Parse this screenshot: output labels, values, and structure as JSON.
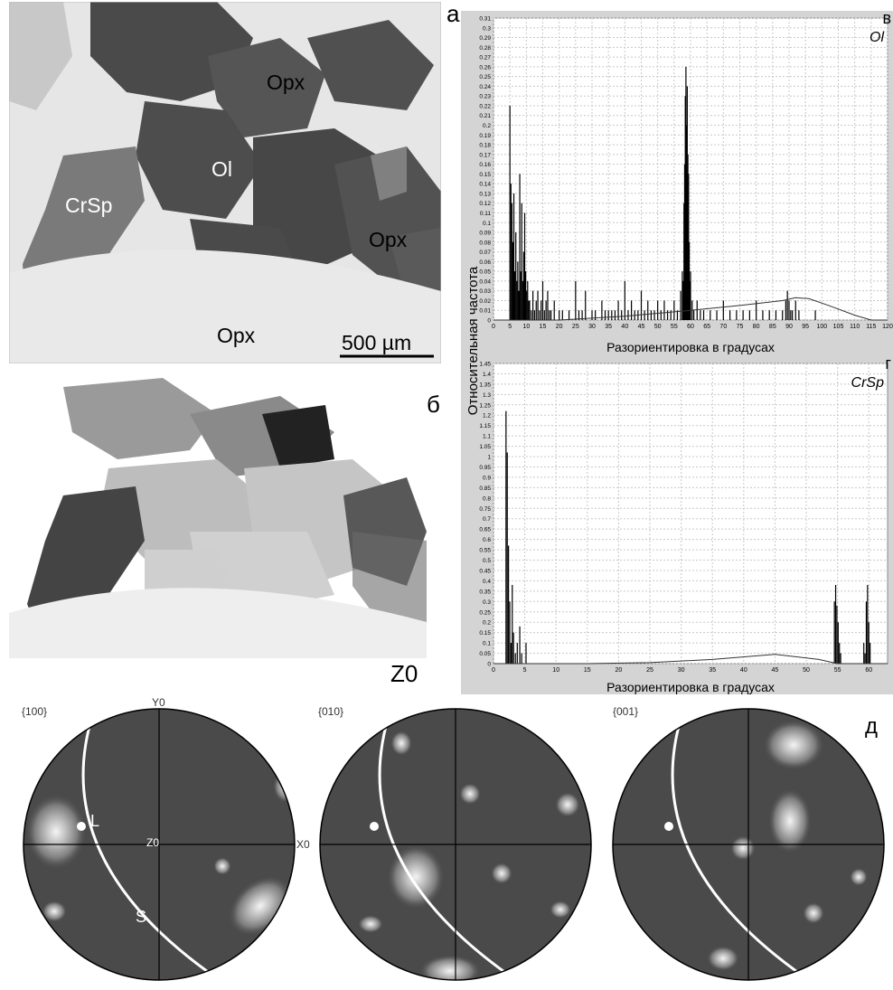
{
  "panel_a": {
    "letter": "а",
    "labels": [
      "Opx",
      "Ol",
      "CrSp",
      "Opx",
      "Opx"
    ],
    "scale_bar": "500 µm"
  },
  "panel_b": {
    "letter": "б",
    "caption": "Z0"
  },
  "shared_ylabel": "Относительная частота",
  "chart_data": [
    {
      "type": "bar",
      "panel_letter": "в",
      "mineral": "Ol",
      "xlabel": "Разориентировка в градусах",
      "ylabel": "Относительная частота",
      "xlim": [
        0,
        120
      ],
      "ylim": [
        0,
        0.31
      ],
      "x_ticks": [
        0,
        5,
        10,
        15,
        20,
        25,
        30,
        35,
        40,
        45,
        50,
        55,
        60,
        65,
        70,
        75,
        80,
        85,
        90,
        95,
        100,
        105,
        110,
        115,
        120
      ],
      "y_ticks": [
        0,
        0.01,
        0.02,
        0.03,
        0.04,
        0.05,
        0.06,
        0.07,
        0.08,
        0.09,
        0.1,
        0.11,
        0.12,
        0.13,
        0.14,
        0.15,
        0.16,
        0.17,
        0.18,
        0.19,
        0.2,
        0.21,
        0.22,
        0.23,
        0.24,
        0.25,
        0.26,
        0.27,
        0.28,
        0.29,
        0.3,
        0.31
      ],
      "grid": true,
      "bars": [
        [
          5,
          0.22
        ],
        [
          5.3,
          0.14
        ],
        [
          5.6,
          0.12
        ],
        [
          5.9,
          0.08
        ],
        [
          6.2,
          0.13
        ],
        [
          6.5,
          0.05
        ],
        [
          6.8,
          0.09
        ],
        [
          7.1,
          0.04
        ],
        [
          7.4,
          0.06
        ],
        [
          7.7,
          0.03
        ],
        [
          8,
          0.15
        ],
        [
          8.3,
          0.05
        ],
        [
          8.6,
          0.12
        ],
        [
          8.9,
          0.04
        ],
        [
          9.2,
          0.07
        ],
        [
          9.5,
          0.11
        ],
        [
          9.8,
          0.05
        ],
        [
          10.1,
          0.03
        ],
        [
          10.4,
          0.04
        ],
        [
          10.7,
          0.02
        ],
        [
          11,
          0.02
        ],
        [
          11.5,
          0.01
        ],
        [
          12,
          0.03
        ],
        [
          12.5,
          0.01
        ],
        [
          13,
          0.02
        ],
        [
          13.5,
          0.03
        ],
        [
          14,
          0.01
        ],
        [
          14.5,
          0.02
        ],
        [
          15,
          0.04
        ],
        [
          15.5,
          0.01
        ],
        [
          16,
          0.02
        ],
        [
          16.5,
          0.03
        ],
        [
          17,
          0.01
        ],
        [
          17.5,
          0.01
        ],
        [
          18.5,
          0.02
        ],
        [
          20,
          0.01
        ],
        [
          21,
          0.01
        ],
        [
          23,
          0.01
        ],
        [
          25,
          0.04
        ],
        [
          26,
          0.01
        ],
        [
          27,
          0.01
        ],
        [
          28,
          0.03
        ],
        [
          30,
          0.01
        ],
        [
          31,
          0.01
        ],
        [
          33,
          0.02
        ],
        [
          34,
          0.01
        ],
        [
          35,
          0.01
        ],
        [
          36,
          0.01
        ],
        [
          37,
          0.01
        ],
        [
          38,
          0.02
        ],
        [
          39,
          0.01
        ],
        [
          40,
          0.04
        ],
        [
          41,
          0.01
        ],
        [
          42,
          0.02
        ],
        [
          43,
          0.01
        ],
        [
          44,
          0.01
        ],
        [
          45,
          0.03
        ],
        [
          46,
          0.01
        ],
        [
          47,
          0.02
        ],
        [
          48,
          0.01
        ],
        [
          49,
          0.01
        ],
        [
          50,
          0.02
        ],
        [
          51,
          0.01
        ],
        [
          52,
          0.02
        ],
        [
          53,
          0.01
        ],
        [
          54,
          0.01
        ],
        [
          55,
          0.02
        ],
        [
          56,
          0.01
        ],
        [
          57,
          0.03
        ],
        [
          57.5,
          0.05
        ],
        [
          57.8,
          0.04
        ],
        [
          58,
          0.12
        ],
        [
          58.2,
          0.16
        ],
        [
          58.4,
          0.23
        ],
        [
          58.6,
          0.26
        ],
        [
          58.8,
          0.2
        ],
        [
          59,
          0.24
        ],
        [
          59.2,
          0.17
        ],
        [
          59.4,
          0.15
        ],
        [
          59.6,
          0.08
        ],
        [
          59.8,
          0.04
        ],
        [
          60,
          0.05
        ],
        [
          60.5,
          0.02
        ],
        [
          61,
          0.01
        ],
        [
          62,
          0.02
        ],
        [
          63,
          0.01
        ],
        [
          64,
          0.01
        ],
        [
          66,
          0.01
        ],
        [
          68,
          0.01
        ],
        [
          70,
          0.02
        ],
        [
          72,
          0.01
        ],
        [
          74,
          0.01
        ],
        [
          76,
          0.01
        ],
        [
          78,
          0.01
        ],
        [
          80,
          0.02
        ],
        [
          82,
          0.01
        ],
        [
          84,
          0.01
        ],
        [
          86,
          0.01
        ],
        [
          88,
          0.01
        ],
        [
          89,
          0.02
        ],
        [
          89.5,
          0.03
        ],
        [
          90,
          0.02
        ],
        [
          90.5,
          0.01
        ],
        [
          91,
          0.01
        ],
        [
          92,
          0.02
        ],
        [
          93,
          0.01
        ],
        [
          98,
          0.01
        ]
      ],
      "theoretical_curve": [
        [
          0,
          0
        ],
        [
          20,
          0
        ],
        [
          40,
          0.004
        ],
        [
          60,
          0.01
        ],
        [
          75,
          0.015
        ],
        [
          88,
          0.02
        ],
        [
          92,
          0.023
        ],
        [
          96,
          0.022
        ],
        [
          102,
          0.015
        ],
        [
          110,
          0.005
        ],
        [
          115,
          0
        ],
        [
          120,
          0
        ]
      ]
    },
    {
      "type": "bar",
      "panel_letter": "г",
      "mineral": "CrSp",
      "xlabel": "Разориентировка в градусах",
      "ylabel": "Относительная частота",
      "xlim": [
        0,
        63
      ],
      "ylim": [
        0,
        1.45
      ],
      "x_ticks": [
        0,
        5,
        10,
        15,
        20,
        25,
        30,
        35,
        40,
        45,
        50,
        55,
        60
      ],
      "y_ticks": [
        0,
        0.05,
        0.1,
        0.15,
        0.2,
        0.25,
        0.3,
        0.35,
        0.4,
        0.45,
        0.5,
        0.55,
        0.6,
        0.65,
        0.7,
        0.75,
        0.8,
        0.85,
        0.9,
        0.95,
        1,
        1.05,
        1.1,
        1.15,
        1.2,
        1.25,
        1.3,
        1.35,
        1.4,
        1.45
      ],
      "grid": true,
      "bars": [
        [
          2,
          1.22
        ],
        [
          2.2,
          1.02
        ],
        [
          2.4,
          0.57
        ],
        [
          2.6,
          0.3
        ],
        [
          2.8,
          0.1
        ],
        [
          3.0,
          0.38
        ],
        [
          3.2,
          0.15
        ],
        [
          3.5,
          0.05
        ],
        [
          3.8,
          0.1
        ],
        [
          4.2,
          0.18
        ],
        [
          4.5,
          0.05
        ],
        [
          5.2,
          0.1
        ],
        [
          54.5,
          0.3
        ],
        [
          54.7,
          0.38
        ],
        [
          54.9,
          0.28
        ],
        [
          55.1,
          0.2
        ],
        [
          55.3,
          0.1
        ],
        [
          55.5,
          0.05
        ],
        [
          59.2,
          0.1
        ],
        [
          59.4,
          0.05
        ],
        [
          59.6,
          0.3
        ],
        [
          59.8,
          0.38
        ],
        [
          60,
          0.2
        ],
        [
          60.2,
          0.1
        ]
      ],
      "theoretical_curve": [
        [
          0,
          0
        ],
        [
          15,
          0
        ],
        [
          25,
          0.005
        ],
        [
          35,
          0.02
        ],
        [
          45,
          0.045
        ],
        [
          52,
          0.02
        ],
        [
          55,
          0
        ],
        [
          63,
          0
        ]
      ]
    }
  ],
  "panel_d": {
    "letter": "д",
    "stereonets": [
      {
        "title": "{100}",
        "axis_y": "Y0",
        "axis_x": "X0",
        "center": "Z0",
        "lineation": "L",
        "foliation": "S"
      },
      {
        "title": "{010}"
      },
      {
        "title": "{001}"
      }
    ]
  }
}
